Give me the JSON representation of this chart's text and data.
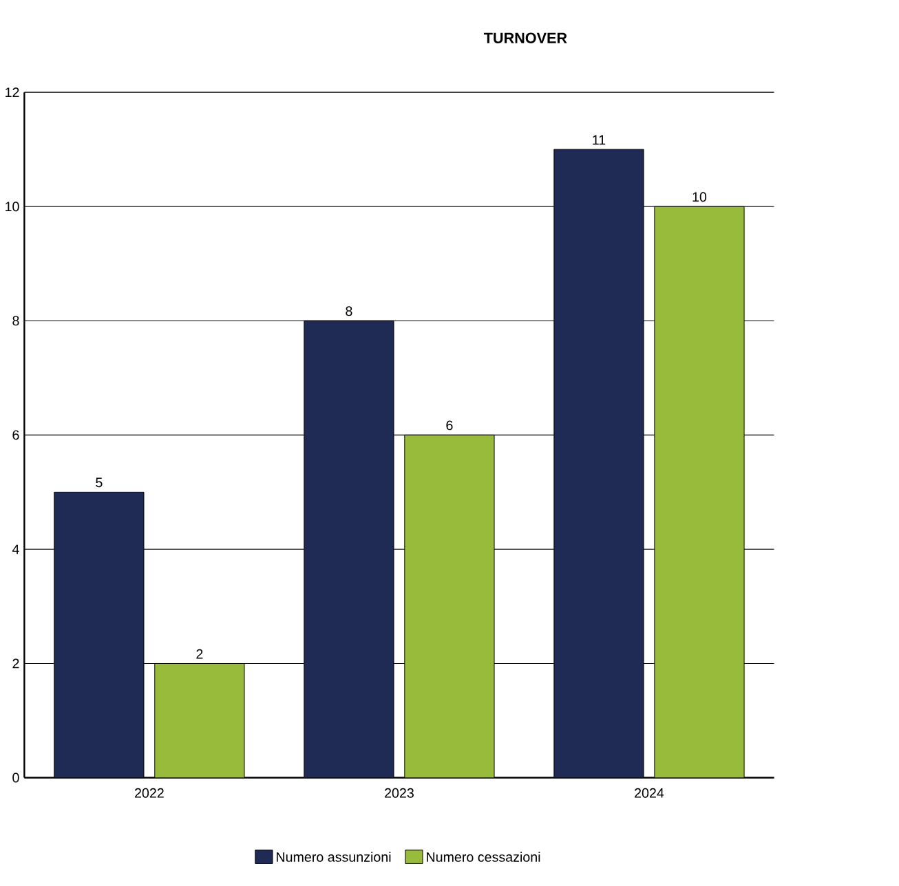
{
  "chart_data": {
    "type": "bar",
    "title": "TURNOVER",
    "categories": [
      "2022",
      "2023",
      "2024"
    ],
    "series": [
      {
        "name": "Numero assunzioni",
        "color": "#1f2a55",
        "values": [
          5,
          8,
          11
        ]
      },
      {
        "name": "Numero cessazioni",
        "color": "#99bb3b",
        "values": [
          2,
          6,
          10
        ]
      }
    ],
    "ylim": [
      0,
      12
    ],
    "yticks": [
      0,
      2,
      4,
      6,
      8,
      10,
      12
    ],
    "grid": "y",
    "legend": "bottom",
    "data_labels": true
  }
}
